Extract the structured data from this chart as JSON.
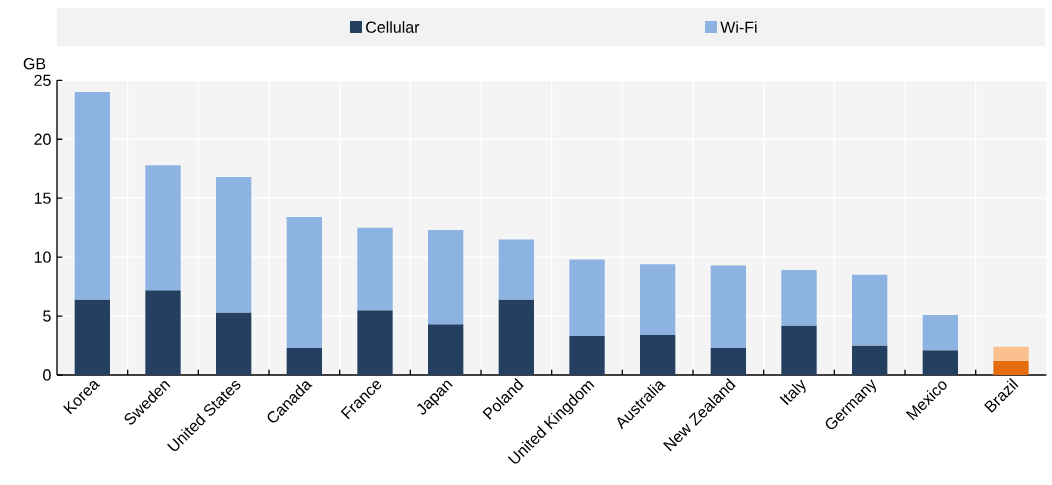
{
  "chart_data": {
    "type": "bar",
    "stacked": true,
    "ylabel": "GB",
    "categories": [
      "Korea",
      "Sweden",
      "United States",
      "Canada",
      "France",
      "Japan",
      "Poland",
      "United Kingdom",
      "Australia",
      "New Zealand",
      "Italy",
      "Germany",
      "Mexico",
      "Brazil"
    ],
    "series": [
      {
        "name": "Cellular",
        "color": "#243f60",
        "colors": [
          "#243f60",
          "#243f60",
          "#243f60",
          "#243f60",
          "#243f60",
          "#243f60",
          "#243f60",
          "#243f60",
          "#243f60",
          "#243f60",
          "#243f60",
          "#243f60",
          "#243f60",
          "#e46c0a"
        ],
        "values": [
          6.4,
          7.2,
          5.3,
          2.3,
          5.5,
          4.3,
          6.4,
          3.3,
          3.4,
          2.3,
          4.2,
          2.5,
          2.1,
          1.2
        ]
      },
      {
        "name": "Wi-Fi",
        "color": "#8db3e2",
        "colors": [
          "#8db3e2",
          "#8db3e2",
          "#8db3e2",
          "#8db3e2",
          "#8db3e2",
          "#8db3e2",
          "#8db3e2",
          "#8db3e2",
          "#8db3e2",
          "#8db3e2",
          "#8db3e2",
          "#8db3e2",
          "#8db3e2",
          "#fac090"
        ],
        "values": [
          17.6,
          10.6,
          11.5,
          11.1,
          7.0,
          8.0,
          5.1,
          6.5,
          6.0,
          7.0,
          4.7,
          6.0,
          3.0,
          1.2
        ]
      }
    ],
    "ylim": [
      0,
      25
    ],
    "yticks": [
      0,
      5,
      10,
      15,
      20,
      25
    ],
    "grid": true,
    "legend": "top"
  }
}
